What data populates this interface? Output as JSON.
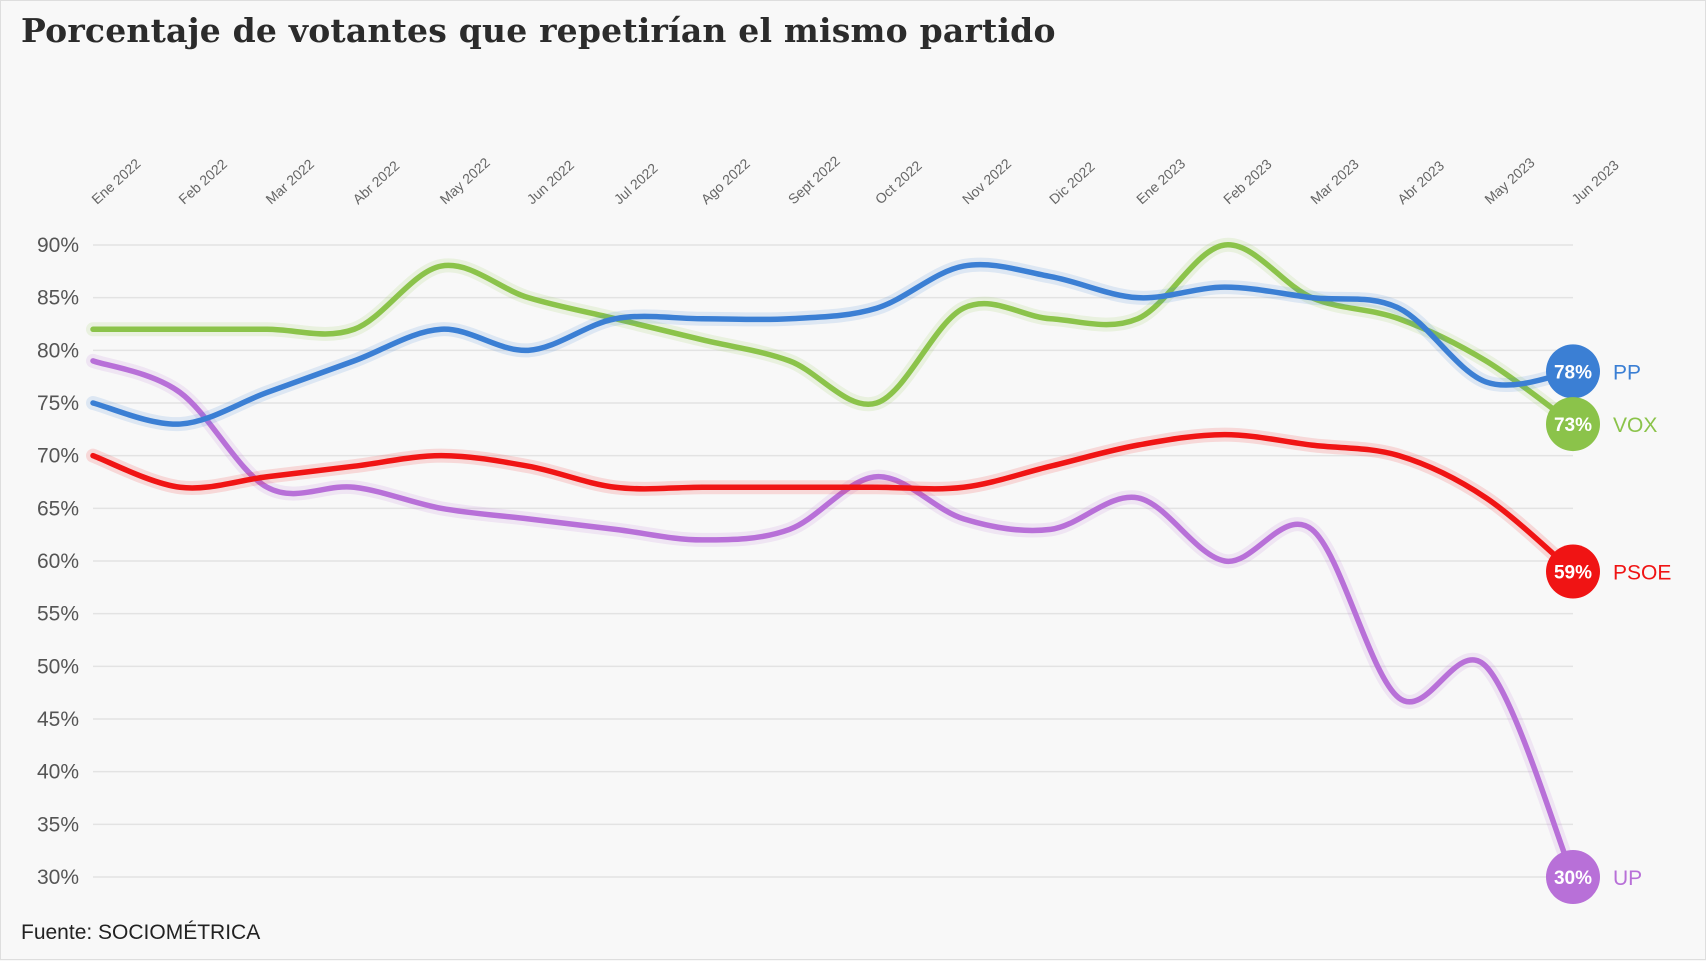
{
  "title": "Porcentaje de votantes que repetirían el mismo partido",
  "source": "Fuente: SOCIOMÉTRICA",
  "chart_data": {
    "type": "line",
    "x": [
      "Ene 2022",
      "Feb 2022",
      "Mar 2022",
      "Abr 2022",
      "May 2022",
      "Jun 2022",
      "Jul 2022",
      "Ago 2022",
      "Sept 2022",
      "Oct 2022",
      "Nov 2022",
      "Dic 2022",
      "Ene 2023",
      "Feb 2023",
      "Mar 2023",
      "Abr 2023",
      "May 2023",
      "Jun 2023"
    ],
    "y_ticks": [
      "90%",
      "85%",
      "80%",
      "75%",
      "70%",
      "65%",
      "60%",
      "55%",
      "50%",
      "45%",
      "40%",
      "35%",
      "30%"
    ],
    "ylim": [
      30,
      90
    ],
    "grid": true,
    "legend": "end-labels",
    "series": [
      {
        "name": "PP",
        "color": "#3b7fd4",
        "end_label": "78%",
        "values": [
          75,
          73,
          76,
          79,
          82,
          80,
          83,
          83,
          83,
          84,
          88,
          87,
          85,
          86,
          85,
          84,
          77,
          78
        ]
      },
      {
        "name": "VOX",
        "color": "#8bc34a",
        "end_label": "73%",
        "values": [
          82,
          82,
          82,
          82,
          88,
          85,
          83,
          81,
          79,
          75,
          84,
          83,
          83,
          90,
          85,
          83,
          79,
          73
        ]
      },
      {
        "name": "PSOE",
        "color": "#f01414",
        "end_label": "59%",
        "values": [
          70,
          67,
          68,
          69,
          70,
          69,
          67,
          67,
          67,
          67,
          67,
          69,
          71,
          72,
          71,
          70,
          66,
          59
        ]
      },
      {
        "name": "UP",
        "color": "#b870d8",
        "end_label": "30%",
        "values": [
          79,
          76,
          67,
          67,
          65,
          64,
          63,
          62,
          63,
          68,
          64,
          63,
          66,
          60,
          63,
          47,
          50,
          30
        ]
      }
    ]
  }
}
